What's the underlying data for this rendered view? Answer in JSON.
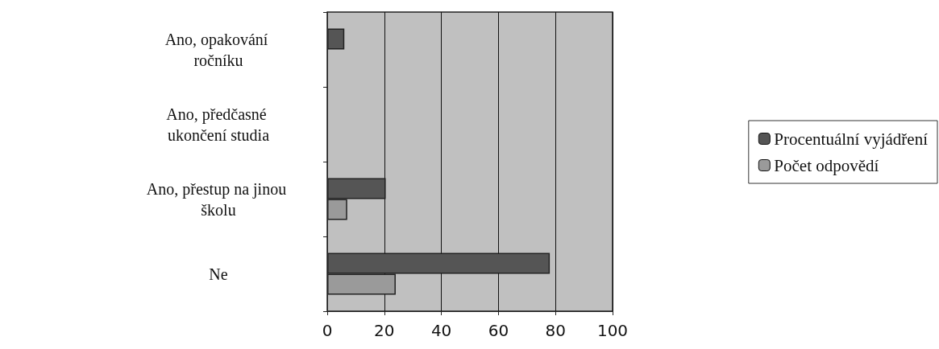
{
  "chart_data": {
    "type": "bar",
    "orientation": "horizontal",
    "categories": [
      "Ano, opakování ročníku",
      "Ano, předčasné ukončení studia",
      "Ano, přestup na jinou školu",
      "Ne"
    ],
    "series": [
      {
        "name": "Procentuální vyjádření",
        "color": "#555555",
        "values": [
          6,
          null,
          20.5,
          78
        ]
      },
      {
        "name": "Počet odpovědí",
        "color": "#9a9a9a",
        "values": [
          null,
          null,
          7,
          24
        ]
      }
    ],
    "xlim": [
      0,
      100
    ],
    "xticks": [
      0,
      20,
      40,
      60,
      80,
      100
    ],
    "grid": "x",
    "legend": "right"
  }
}
